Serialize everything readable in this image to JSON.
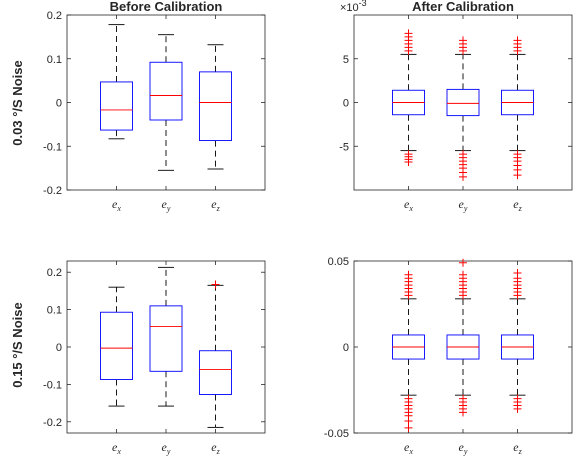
{
  "figure": {
    "row_labels": [
      "0.03 °/S Noise",
      "0.15 °/S Noise"
    ]
  },
  "chart_data": [
    {
      "type": "box",
      "title": "Before Calibration",
      "ylabel": "0.03 °/S Noise",
      "categories": [
        {
          "base": "e",
          "sub": "x"
        },
        {
          "base": "e",
          "sub": "y"
        },
        {
          "base": "e",
          "sub": "z"
        }
      ],
      "ylim": [
        -0.2,
        0.2
      ],
      "yticks": [
        -0.2,
        -0.1,
        0,
        0.1,
        0.2
      ],
      "ytick_labels": [
        "-0.2",
        "-0.1",
        "0",
        "0.1",
        "0.2"
      ],
      "exponent_label": "",
      "boxes": [
        {
          "whisker_low": -0.083,
          "q1": -0.063,
          "median": -0.017,
          "q3": 0.047,
          "whisker_high": 0.178,
          "outliers": []
        },
        {
          "whisker_low": -0.155,
          "q1": -0.04,
          "median": 0.016,
          "q3": 0.092,
          "whisker_high": 0.155,
          "outliers": []
        },
        {
          "whisker_low": -0.152,
          "q1": -0.087,
          "median": 0.0,
          "q3": 0.07,
          "whisker_high": 0.132,
          "outliers": []
        }
      ],
      "colors": {
        "box": "#0000ff",
        "median": "#ff0000",
        "whisker": "#000000",
        "outlier": "#ff0000"
      }
    },
    {
      "type": "box",
      "title": "After Calibration",
      "ylabel": "",
      "categories": [
        {
          "base": "e",
          "sub": "x"
        },
        {
          "base": "e",
          "sub": "y"
        },
        {
          "base": "e",
          "sub": "z"
        }
      ],
      "ylim": [
        -0.01,
        0.01
      ],
      "yticks": [
        -0.005,
        0,
        0.005
      ],
      "ytick_labels": [
        "-5",
        "0",
        "5"
      ],
      "exponent_label": "×10-3",
      "boxes": [
        {
          "whisker_low": -0.0055,
          "q1": -0.0014,
          "median": 0.0,
          "q3": 0.0014,
          "whisker_high": 0.0055,
          "outliers": [
            0.0059,
            0.0063,
            0.0067,
            0.0071,
            0.0075,
            0.0079,
            -0.0059,
            -0.0062,
            -0.0065,
            -0.0068
          ]
        },
        {
          "whisker_low": -0.0055,
          "q1": -0.0015,
          "median": -0.0001,
          "q3": 0.0015,
          "whisker_high": 0.0055,
          "outliers": [
            0.0059,
            0.0063,
            0.0067,
            0.0071,
            -0.0059,
            -0.0063,
            -0.0067,
            -0.0071,
            -0.0075,
            -0.008,
            -0.0085
          ]
        },
        {
          "whisker_low": -0.0055,
          "q1": -0.0014,
          "median": 0.0,
          "q3": 0.0014,
          "whisker_high": 0.0055,
          "outliers": [
            0.0059,
            0.0063,
            0.0067,
            0.0071,
            -0.0059,
            -0.0063,
            -0.0067,
            -0.0072,
            -0.0077,
            -0.0083
          ]
        }
      ],
      "colors": {
        "box": "#0000ff",
        "median": "#ff0000",
        "whisker": "#000000",
        "outlier": "#ff0000"
      }
    },
    {
      "type": "box",
      "title": "",
      "ylabel": "0.15 °/S Noise",
      "categories": [
        {
          "base": "e",
          "sub": "x"
        },
        {
          "base": "e",
          "sub": "y"
        },
        {
          "base": "e",
          "sub": "z"
        }
      ],
      "ylim": [
        -0.23,
        0.23
      ],
      "yticks": [
        -0.2,
        -0.1,
        0,
        0.1,
        0.2
      ],
      "ytick_labels": [
        "-0.2",
        "-0.1",
        "0",
        "0.1",
        "0.2"
      ],
      "exponent_label": "",
      "boxes": [
        {
          "whisker_low": -0.158,
          "q1": -0.087,
          "median": -0.003,
          "q3": 0.093,
          "whisker_high": 0.16,
          "outliers": []
        },
        {
          "whisker_low": -0.158,
          "q1": -0.065,
          "median": 0.055,
          "q3": 0.11,
          "whisker_high": 0.213,
          "outliers": []
        },
        {
          "whisker_low": -0.215,
          "q1": -0.127,
          "median": -0.06,
          "q3": -0.01,
          "whisker_high": 0.165,
          "outliers": [
            0.167
          ]
        }
      ],
      "colors": {
        "box": "#0000ff",
        "median": "#ff0000",
        "whisker": "#000000",
        "outlier": "#ff0000"
      }
    },
    {
      "type": "box",
      "title": "",
      "ylabel": "",
      "categories": [
        {
          "base": "e",
          "sub": "x"
        },
        {
          "base": "e",
          "sub": "y"
        },
        {
          "base": "e",
          "sub": "z"
        }
      ],
      "ylim": [
        -0.05,
        0.05
      ],
      "yticks": [
        -0.05,
        0,
        0.05
      ],
      "ytick_labels": [
        "-0.05",
        "0",
        "0.05"
      ],
      "exponent_label": "",
      "boxes": [
        {
          "whisker_low": -0.028,
          "q1": -0.007,
          "median": 0.0,
          "q3": 0.007,
          "whisker_high": 0.028,
          "outliers": [
            0.03,
            0.032,
            0.034,
            0.036,
            0.038,
            0.04,
            0.042,
            -0.03,
            -0.032,
            -0.034,
            -0.036,
            -0.038,
            -0.04,
            -0.043,
            -0.047
          ]
        },
        {
          "whisker_low": -0.028,
          "q1": -0.007,
          "median": 0.0,
          "q3": 0.007,
          "whisker_high": 0.028,
          "outliers": [
            0.03,
            0.032,
            0.034,
            0.036,
            0.038,
            0.04,
            0.042,
            0.049,
            -0.03,
            -0.032,
            -0.034,
            -0.036,
            -0.038
          ]
        },
        {
          "whisker_low": -0.028,
          "q1": -0.007,
          "median": 0.0,
          "q3": 0.007,
          "whisker_high": 0.028,
          "outliers": [
            0.03,
            0.032,
            0.034,
            0.036,
            0.038,
            0.04,
            0.043,
            -0.03,
            -0.032,
            -0.034,
            -0.036
          ]
        }
      ],
      "colors": {
        "box": "#0000ff",
        "median": "#ff0000",
        "whisker": "#000000",
        "outlier": "#ff0000"
      }
    }
  ]
}
